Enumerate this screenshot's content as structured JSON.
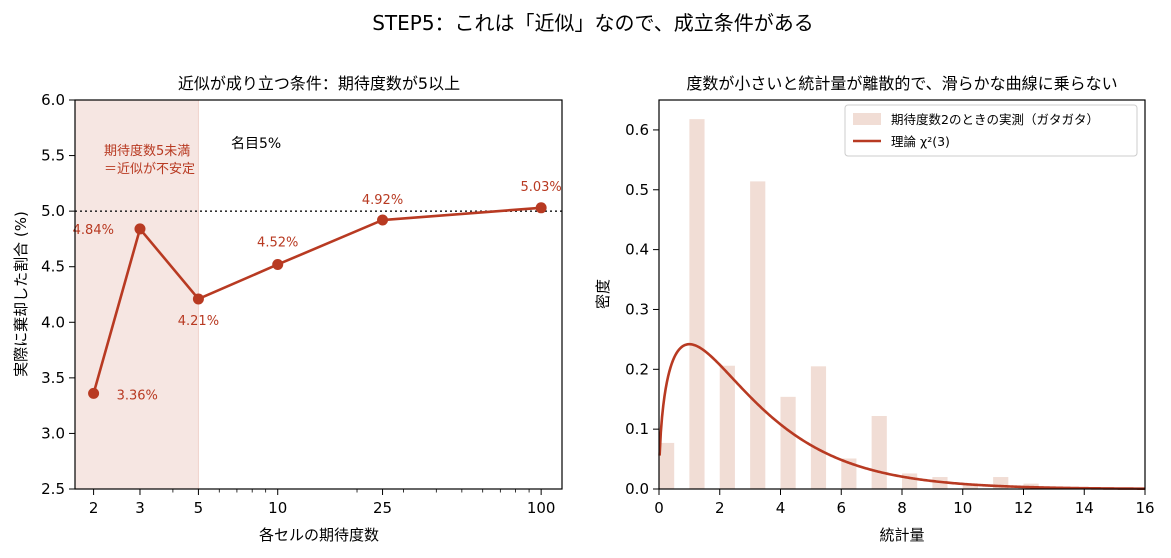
{
  "figure": {
    "suptitle": "STEP5：これは「近似」なので、成立条件がある"
  },
  "colors": {
    "accent": "#b83a22",
    "shade": "#f6e6e2",
    "hist": "#f1ddd5",
    "ref_line": "#333333"
  },
  "chart_data": [
    {
      "type": "line",
      "title": "近似が成り立つ条件：期待度数が5以上",
      "xlabel": "各セルの期待度数",
      "ylabel": "実際に棄却した割合 (%)",
      "x_scale": "log",
      "xlim": [
        1.7,
        120
      ],
      "ylim": [
        2.5,
        6.0
      ],
      "x_ticks": [
        2,
        3,
        5,
        10,
        25,
        100
      ],
      "x_tick_labels": [
        "2",
        "3",
        "5",
        "10",
        "25",
        "100"
      ],
      "y_ticks": [
        2.5,
        3.0,
        3.5,
        4.0,
        4.5,
        5.0,
        5.5,
        6.0
      ],
      "y_tick_labels": [
        "2.5",
        "3.0",
        "3.5",
        "4.0",
        "4.5",
        "5.0",
        "5.5",
        "6.0"
      ],
      "series": [
        {
          "x": [
            2,
            3,
            5,
            10,
            25,
            100
          ],
          "values": [
            3.36,
            4.84,
            4.21,
            4.52,
            4.92,
            5.03
          ],
          "labels": [
            "3.36%",
            "4.84%",
            "4.21%",
            "4.52%",
            "4.92%",
            "5.03%"
          ]
        }
      ],
      "reference_line": {
        "y": 5.0,
        "label": "名目5%"
      },
      "shaded_region": {
        "x_from": 1.7,
        "x_to": 5,
        "label_lines": [
          "期待度数5未満",
          "＝近似が不安定"
        ]
      },
      "grid": false
    },
    {
      "type": "bar",
      "title": "度数が小さいと統計量が離散的で、滑らかな曲線に乗らない",
      "xlabel": "統計量",
      "ylabel": "密度",
      "xlim": [
        0,
        16
      ],
      "ylim": [
        0,
        0.65
      ],
      "x_ticks": [
        0,
        2,
        4,
        6,
        8,
        10,
        12,
        14,
        16
      ],
      "x_tick_labels": [
        "0",
        "2",
        "4",
        "6",
        "8",
        "10",
        "12",
        "14",
        "16"
      ],
      "y_ticks": [
        0.0,
        0.1,
        0.2,
        0.3,
        0.4,
        0.5,
        0.6
      ],
      "y_tick_labels": [
        "0.0",
        "0.1",
        "0.2",
        "0.3",
        "0.4",
        "0.5",
        "0.6"
      ],
      "bars": {
        "name": "期待度数2のときの実測（ガタガタ）",
        "x": [
          0,
          1,
          2,
          3,
          4,
          5,
          6,
          7,
          8,
          9,
          10,
          11,
          12
        ],
        "values": [
          0.077,
          0.618,
          0.206,
          0.514,
          0.154,
          0.205,
          0.051,
          0.122,
          0.026,
          0.02,
          0.006,
          0.02,
          0.009
        ]
      },
      "curve": {
        "name": "理論 χ²(3)",
        "distribution": "chi-square",
        "df": 3
      },
      "legend": "top-right",
      "grid": false
    }
  ]
}
